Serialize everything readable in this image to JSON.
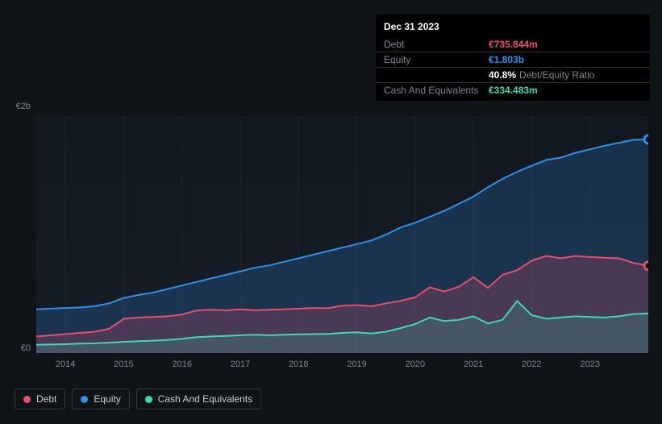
{
  "chart": {
    "type": "area",
    "background_color": "#0f1419",
    "plot_background": "#151b23",
    "grid_color": "#263040",
    "ylim": [
      0,
      2000
    ],
    "ytick_labels": [
      "€0",
      "€2b"
    ],
    "ytick_values": [
      0,
      2000
    ],
    "x_years": [
      2014,
      2015,
      2016,
      2017,
      2018,
      2019,
      2020,
      2021,
      2022,
      2023
    ],
    "x_range": [
      2013.5,
      2024.0
    ],
    "series": {
      "equity": {
        "label": "Equity",
        "color": "#2d8fe8",
        "fill_opacity": 0.22,
        "line_width": 2,
        "data": [
          [
            2013.5,
            370
          ],
          [
            2013.75,
            375
          ],
          [
            2014.0,
            380
          ],
          [
            2014.25,
            385
          ],
          [
            2014.5,
            395
          ],
          [
            2014.75,
            420
          ],
          [
            2015.0,
            465
          ],
          [
            2015.25,
            490
          ],
          [
            2015.5,
            510
          ],
          [
            2015.75,
            540
          ],
          [
            2016.0,
            570
          ],
          [
            2016.25,
            600
          ],
          [
            2016.5,
            630
          ],
          [
            2016.75,
            660
          ],
          [
            2017.0,
            690
          ],
          [
            2017.25,
            720
          ],
          [
            2017.5,
            740
          ],
          [
            2017.75,
            770
          ],
          [
            2018.0,
            800
          ],
          [
            2018.25,
            830
          ],
          [
            2018.5,
            860
          ],
          [
            2018.75,
            890
          ],
          [
            2019.0,
            920
          ],
          [
            2019.25,
            950
          ],
          [
            2019.5,
            1000
          ],
          [
            2019.75,
            1060
          ],
          [
            2020.0,
            1100
          ],
          [
            2020.25,
            1150
          ],
          [
            2020.5,
            1200
          ],
          [
            2020.75,
            1260
          ],
          [
            2021.0,
            1320
          ],
          [
            2021.25,
            1400
          ],
          [
            2021.5,
            1470
          ],
          [
            2021.75,
            1530
          ],
          [
            2022.0,
            1580
          ],
          [
            2022.25,
            1630
          ],
          [
            2022.5,
            1650
          ],
          [
            2022.75,
            1690
          ],
          [
            2023.0,
            1720
          ],
          [
            2023.25,
            1750
          ],
          [
            2023.5,
            1775
          ],
          [
            2023.75,
            1800
          ],
          [
            2024.0,
            1803
          ]
        ]
      },
      "debt": {
        "label": "Debt",
        "color": "#e84d6b",
        "fill_opacity": 0.22,
        "line_width": 2,
        "data": [
          [
            2013.5,
            140
          ],
          [
            2013.75,
            150
          ],
          [
            2014.0,
            160
          ],
          [
            2014.25,
            170
          ],
          [
            2014.5,
            180
          ],
          [
            2014.75,
            205
          ],
          [
            2015.0,
            290
          ],
          [
            2015.25,
            300
          ],
          [
            2015.5,
            305
          ],
          [
            2015.75,
            310
          ],
          [
            2016.0,
            325
          ],
          [
            2016.25,
            360
          ],
          [
            2016.5,
            365
          ],
          [
            2016.75,
            360
          ],
          [
            2017.0,
            370
          ],
          [
            2017.25,
            360
          ],
          [
            2017.5,
            365
          ],
          [
            2017.75,
            370
          ],
          [
            2018.0,
            375
          ],
          [
            2018.25,
            380
          ],
          [
            2018.5,
            378
          ],
          [
            2018.75,
            400
          ],
          [
            2019.0,
            405
          ],
          [
            2019.25,
            395
          ],
          [
            2019.5,
            420
          ],
          [
            2019.75,
            440
          ],
          [
            2020.0,
            470
          ],
          [
            2020.25,
            555
          ],
          [
            2020.5,
            520
          ],
          [
            2020.75,
            560
          ],
          [
            2021.0,
            640
          ],
          [
            2021.25,
            550
          ],
          [
            2021.5,
            660
          ],
          [
            2021.75,
            700
          ],
          [
            2022.0,
            780
          ],
          [
            2022.25,
            820
          ],
          [
            2022.5,
            800
          ],
          [
            2022.75,
            820
          ],
          [
            2023.0,
            810
          ],
          [
            2023.25,
            805
          ],
          [
            2023.5,
            800
          ],
          [
            2023.75,
            760
          ],
          [
            2024.0,
            736
          ]
        ]
      },
      "cash": {
        "label": "Cash And Equivalents",
        "color": "#3dd9b3",
        "fill_opacity": 0.18,
        "line_width": 2,
        "data": [
          [
            2013.5,
            70
          ],
          [
            2013.75,
            72
          ],
          [
            2014.0,
            75
          ],
          [
            2014.25,
            80
          ],
          [
            2014.5,
            82
          ],
          [
            2014.75,
            88
          ],
          [
            2015.0,
            95
          ],
          [
            2015.25,
            100
          ],
          [
            2015.5,
            105
          ],
          [
            2015.75,
            110
          ],
          [
            2016.0,
            120
          ],
          [
            2016.25,
            135
          ],
          [
            2016.5,
            140
          ],
          [
            2016.75,
            145
          ],
          [
            2017.0,
            150
          ],
          [
            2017.25,
            155
          ],
          [
            2017.5,
            150
          ],
          [
            2017.75,
            155
          ],
          [
            2018.0,
            158
          ],
          [
            2018.25,
            160
          ],
          [
            2018.5,
            162
          ],
          [
            2018.75,
            170
          ],
          [
            2019.0,
            175
          ],
          [
            2019.25,
            165
          ],
          [
            2019.5,
            180
          ],
          [
            2019.75,
            210
          ],
          [
            2020.0,
            245
          ],
          [
            2020.25,
            300
          ],
          [
            2020.5,
            270
          ],
          [
            2020.75,
            280
          ],
          [
            2021.0,
            310
          ],
          [
            2021.25,
            250
          ],
          [
            2021.5,
            280
          ],
          [
            2021.75,
            440
          ],
          [
            2022.0,
            320
          ],
          [
            2022.25,
            290
          ],
          [
            2022.5,
            300
          ],
          [
            2022.75,
            310
          ],
          [
            2023.0,
            305
          ],
          [
            2023.25,
            300
          ],
          [
            2023.5,
            310
          ],
          [
            2023.75,
            330
          ],
          [
            2024.0,
            334
          ]
        ]
      }
    },
    "highlight_point": {
      "x": 2024.0
    }
  },
  "tooltip": {
    "date": "Dec 31 2023",
    "rows": {
      "debt": {
        "label": "Debt",
        "value": "€735.844m"
      },
      "equity": {
        "label": "Equity",
        "value": "€1.803b"
      },
      "ratio": {
        "pct": "40.8%",
        "label": "Debt/Equity Ratio"
      },
      "cash": {
        "label": "Cash And Equivalents",
        "value": "€334.483m"
      }
    }
  },
  "legend": {
    "items": [
      {
        "key": "debt",
        "label": "Debt",
        "color": "#e84d6b"
      },
      {
        "key": "equity",
        "label": "Equity",
        "color": "#2d8fe8"
      },
      {
        "key": "cash",
        "label": "Cash And Equivalents",
        "color": "#3dd9b3"
      }
    ]
  }
}
